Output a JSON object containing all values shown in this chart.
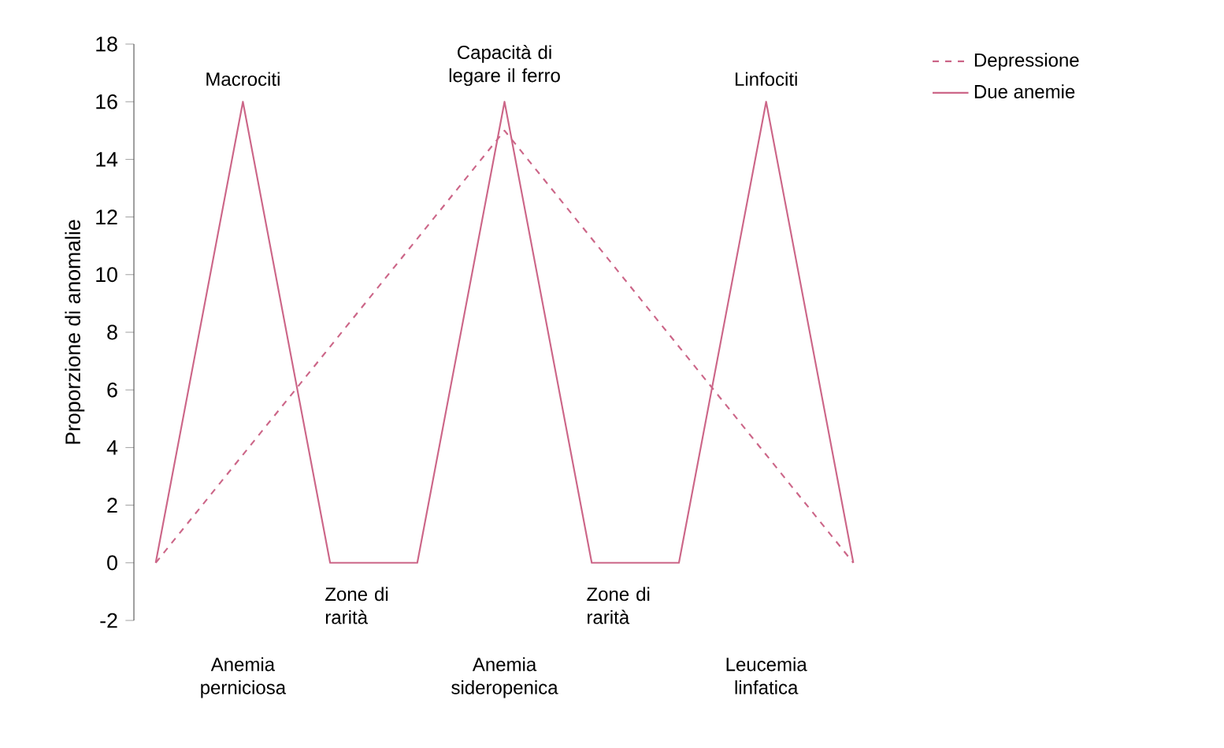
{
  "chart_data": {
    "type": "line",
    "ylabel": "Proporzione di anomalie",
    "categories": [
      null,
      "Anemia perniciosa",
      null,
      null,
      "Anemia sideropenica",
      null,
      null,
      "Leucemia linfatica",
      null
    ],
    "series": [
      {
        "name": "Depressione",
        "color": "#cc6688",
        "line_style": "dashed",
        "values": [
          0,
          null,
          null,
          null,
          15,
          null,
          null,
          null,
          0
        ]
      },
      {
        "name": "Due anemie",
        "color": "#cc6688",
        "line_style": "solid",
        "values": [
          0,
          16,
          0,
          0,
          16,
          0,
          0,
          16,
          0
        ]
      }
    ],
    "annotations": [
      {
        "text": "Macrociti",
        "x": "Anemia perniciosa",
        "y": 16
      },
      {
        "text": "Capacità di legare il ferro",
        "x": "Anemia sideropenica",
        "y": 16
      },
      {
        "text": "Linfociti",
        "x": "Leucemia linfatica",
        "y": 16
      },
      "Zone di rarità",
      "Zone di rarità"
    ],
    "ylim": [
      -2,
      18
    ],
    "yticks": [
      -2,
      0,
      2,
      4,
      6,
      8,
      10,
      12,
      14,
      16,
      18
    ],
    "grid": false,
    "legend": "top right",
    "marker": "none"
  }
}
